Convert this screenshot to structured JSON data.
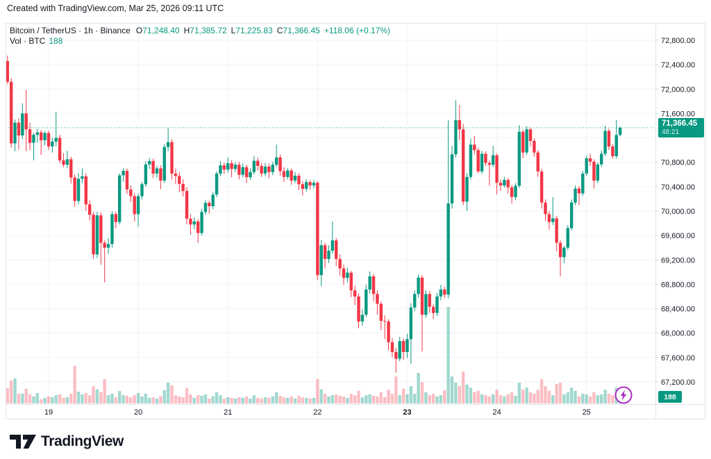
{
  "attribution": "Created with TradingView.com, Mar 25, 2026 09:11 UTC",
  "header": {
    "title": "Bitcoin / TetherUS · 1h · Binance",
    "ohlc_items": [
      {
        "label": "O",
        "value": "71,248.40"
      },
      {
        "label": "H",
        "value": "71,385.72"
      },
      {
        "label": "L",
        "value": "71,225.83"
      },
      {
        "label": "C",
        "value": "71,366.45"
      }
    ],
    "change": "+118.06 (+0.17%)",
    "vol_label": "Vol · BTC",
    "vol_value": "188"
  },
  "price_axis": {
    "labels": [
      {
        "text": "72,800.00",
        "price": 72800
      },
      {
        "text": "72,400.00",
        "price": 72400
      },
      {
        "text": "72,000.00",
        "price": 72000
      },
      {
        "text": "71,600.00",
        "price": 71600
      },
      {
        "text": "70,800.00",
        "price": 70800
      },
      {
        "text": "70,400.00",
        "price": 70400
      },
      {
        "text": "70,000.00",
        "price": 70000
      },
      {
        "text": "69,600.00",
        "price": 69600
      },
      {
        "text": "69,200.00",
        "price": 69200
      },
      {
        "text": "68,800.00",
        "price": 68800
      },
      {
        "text": "68,400.00",
        "price": 68400
      },
      {
        "text": "68,000.00",
        "price": 68000
      },
      {
        "text": "67,600.00",
        "price": 67600
      },
      {
        "text": "67,200.00",
        "price": 67200
      }
    ],
    "badge": {
      "price": "71,366.45",
      "countdown": "48:21"
    },
    "volume_badge": "188"
  },
  "time_axis": {
    "labels": [
      {
        "label": "19",
        "index": 11,
        "bold": false
      },
      {
        "label": "20",
        "index": 35,
        "bold": false
      },
      {
        "label": "21",
        "index": 59,
        "bold": false
      },
      {
        "label": "22",
        "index": 83,
        "bold": false
      },
      {
        "label": "23",
        "index": 107,
        "bold": true
      },
      {
        "label": "24",
        "index": 131,
        "bold": false
      },
      {
        "label": "25",
        "index": 155,
        "bold": false
      }
    ]
  },
  "footer": {
    "logo_text": "TradingView"
  },
  "colors": {
    "up": "#089981",
    "down": "#f23645",
    "vol_up": "rgba(8,153,129,0.38)",
    "vol_down": "rgba(242,54,69,0.32)",
    "grid": "#f0f3fa",
    "axis_text": "#131722",
    "separator": "#e0e3eb",
    "badge_bg": "#089981",
    "flash_purple": "#ab2cc4"
  },
  "chart_data": {
    "type": "candlestick",
    "title": "Bitcoin / TetherUS",
    "interval": "1h",
    "exchange": "Binance",
    "last_price": 71366.45,
    "last_change": 118.06,
    "last_change_pct": 0.17,
    "y_axis": {
      "min": 67200,
      "max": 72800,
      "step": 400
    },
    "x_day_labels": [
      "19",
      "20",
      "21",
      "22",
      "23",
      "24",
      "25"
    ],
    "candle_format": [
      "open",
      "high",
      "low",
      "close",
      "volume_btc"
    ],
    "candles": [
      [
        72460,
        72550,
        72080,
        72120,
        520
      ],
      [
        72120,
        72180,
        71040,
        71110,
        780
      ],
      [
        71110,
        71500,
        70980,
        71450,
        850
      ],
      [
        71450,
        71520,
        71010,
        71240,
        330
      ],
      [
        71240,
        71770,
        71180,
        71600,
        330
      ],
      [
        71600,
        71985,
        70980,
        71340,
        500
      ],
      [
        71340,
        71450,
        71000,
        71120,
        310
      ],
      [
        71120,
        71280,
        70830,
        71250,
        240
      ],
      [
        71250,
        71350,
        71120,
        71290,
        355
      ],
      [
        71290,
        71330,
        70920,
        71160,
        140
      ],
      [
        71160,
        71310,
        71080,
        71280,
        190
      ],
      [
        71280,
        71320,
        71000,
        71060,
        240
      ],
      [
        71060,
        71200,
        70960,
        71140,
        210
      ],
      [
        71140,
        71630,
        71060,
        71200,
        280
      ],
      [
        71200,
        71250,
        70780,
        70830,
        310
      ],
      [
        70830,
        70950,
        70720,
        70760,
        190
      ],
      [
        70760,
        70990,
        70700,
        70850,
        210
      ],
      [
        70850,
        70890,
        70450,
        70550,
        330
      ],
      [
        70550,
        70600,
        70070,
        70165,
        1280
      ],
      [
        70165,
        70620,
        70110,
        70530,
        400
      ],
      [
        70530,
        70700,
        70460,
        70570,
        310
      ],
      [
        70570,
        70620,
        70000,
        70110,
        355
      ],
      [
        70110,
        70180,
        69845,
        69940,
        280
      ],
      [
        69940,
        69990,
        69220,
        69290,
        590
      ],
      [
        69290,
        69990,
        69230,
        69930,
        475
      ],
      [
        69930,
        69980,
        69120,
        69480,
        380
      ],
      [
        69480,
        69520,
        68830,
        69400,
        830
      ],
      [
        69400,
        69560,
        69300,
        69460,
        280
      ],
      [
        69460,
        70000,
        69400,
        69950,
        330
      ],
      [
        69950,
        69990,
        69720,
        69820,
        210
      ],
      [
        69820,
        70620,
        69780,
        70585,
        425
      ],
      [
        70585,
        70700,
        70480,
        70660,
        280
      ],
      [
        70660,
        70700,
        70280,
        70355,
        260
      ],
      [
        70355,
        70420,
        70150,
        70245,
        210
      ],
      [
        70245,
        70290,
        69830,
        69950,
        280
      ],
      [
        69950,
        70290,
        69745,
        70245,
        355
      ],
      [
        70245,
        70480,
        70190,
        70440,
        240
      ],
      [
        70440,
        70820,
        70400,
        70765,
        330
      ],
      [
        70765,
        70870,
        70690,
        70820,
        190
      ],
      [
        70820,
        70860,
        70540,
        70615,
        210
      ],
      [
        70615,
        70740,
        70550,
        70700,
        165
      ],
      [
        70700,
        70750,
        70360,
        70500,
        240
      ],
      [
        70500,
        71100,
        70460,
        71050,
        450
      ],
      [
        71050,
        71360,
        70980,
        71130,
        710
      ],
      [
        71130,
        71180,
        70520,
        70615,
        615
      ],
      [
        70615,
        70700,
        70440,
        70575,
        280
      ],
      [
        70575,
        70640,
        70310,
        70445,
        240
      ],
      [
        70445,
        70520,
        70240,
        70330,
        210
      ],
      [
        70330,
        70390,
        69780,
        69875,
        520
      ],
      [
        69875,
        69950,
        69610,
        69780,
        310
      ],
      [
        69780,
        69900,
        69700,
        69830,
        190
      ],
      [
        69830,
        69870,
        69480,
        69640,
        280
      ],
      [
        69640,
        70040,
        69600,
        69985,
        260
      ],
      [
        69985,
        70180,
        69940,
        70135,
        310
      ],
      [
        70135,
        70170,
        69960,
        70080,
        165
      ],
      [
        70080,
        70310,
        70030,
        70270,
        240
      ],
      [
        70270,
        70650,
        70230,
        70615,
        380
      ],
      [
        70615,
        70820,
        70570,
        70750,
        280
      ],
      [
        70750,
        70800,
        70610,
        70680,
        165
      ],
      [
        70680,
        70880,
        70630,
        70785,
        210
      ],
      [
        70785,
        70830,
        70555,
        70690,
        190
      ],
      [
        70690,
        70800,
        70640,
        70760,
        165
      ],
      [
        70760,
        70810,
        70520,
        70595,
        210
      ],
      [
        70595,
        70780,
        70550,
        70720,
        190
      ],
      [
        70720,
        70760,
        70460,
        70555,
        240
      ],
      [
        70555,
        70700,
        70510,
        70640,
        165
      ],
      [
        70640,
        70900,
        70600,
        70825,
        280
      ],
      [
        70825,
        70880,
        70660,
        70740,
        190
      ],
      [
        70740,
        70790,
        70560,
        70615,
        165
      ],
      [
        70615,
        70790,
        70570,
        70730,
        210
      ],
      [
        70730,
        70780,
        70540,
        70640,
        190
      ],
      [
        70640,
        70810,
        70590,
        70760,
        240
      ],
      [
        70760,
        71090,
        70720,
        70880,
        380
      ],
      [
        70880,
        70930,
        70580,
        70655,
        260
      ],
      [
        70655,
        70720,
        70475,
        70560,
        210
      ],
      [
        70560,
        70710,
        70520,
        70665,
        190
      ],
      [
        70665,
        70700,
        70430,
        70500,
        240
      ],
      [
        70500,
        70640,
        70460,
        70580,
        165
      ],
      [
        70580,
        70620,
        70345,
        70440,
        260
      ],
      [
        70440,
        70490,
        70255,
        70365,
        210
      ],
      [
        70365,
        70520,
        70320,
        70475,
        190
      ],
      [
        70475,
        70510,
        70350,
        70420,
        165
      ],
      [
        70420,
        70510,
        70370,
        70465,
        190
      ],
      [
        70465,
        70490,
        68870,
        68950,
        830
      ],
      [
        68950,
        69520,
        68770,
        69440,
        480
      ],
      [
        69440,
        69480,
        69060,
        69215,
        330
      ],
      [
        69215,
        69440,
        69150,
        69350,
        240
      ],
      [
        69350,
        69830,
        69300,
        69520,
        280
      ],
      [
        69520,
        69560,
        69100,
        69215,
        310
      ],
      [
        69215,
        69290,
        68940,
        69060,
        260
      ],
      [
        69060,
        69120,
        68790,
        68905,
        240
      ],
      [
        68905,
        69070,
        68830,
        68990,
        190
      ],
      [
        68990,
        69020,
        68590,
        68700,
        330
      ],
      [
        68700,
        68780,
        68460,
        68600,
        280
      ],
      [
        68600,
        68650,
        68080,
        68190,
        425
      ],
      [
        68190,
        68390,
        68120,
        68300,
        210
      ],
      [
        68300,
        68790,
        68260,
        68715,
        280
      ],
      [
        68715,
        69010,
        68650,
        68930,
        310
      ],
      [
        68930,
        68970,
        68520,
        68640,
        260
      ],
      [
        68640,
        68700,
        68300,
        68480,
        240
      ],
      [
        68480,
        68520,
        68050,
        68200,
        380
      ],
      [
        68200,
        68290,
        67900,
        68190,
        210
      ],
      [
        68190,
        68230,
        67720,
        67850,
        470
      ],
      [
        67850,
        67920,
        67600,
        67690,
        330
      ],
      [
        67690,
        67760,
        67350,
        67580,
        920
      ],
      [
        67580,
        67940,
        67540,
        67870,
        280
      ],
      [
        67870,
        67910,
        67560,
        67690,
        500
      ],
      [
        67690,
        67990,
        67590,
        67900,
        310
      ],
      [
        67900,
        68490,
        67500,
        68420,
        590
      ],
      [
        68420,
        68700,
        68360,
        68640,
        330
      ],
      [
        68640,
        68960,
        68580,
        68910,
        1040
      ],
      [
        68910,
        68950,
        67700,
        68300,
        730
      ],
      [
        68300,
        68700,
        68250,
        68640,
        380
      ],
      [
        68640,
        68690,
        68330,
        68430,
        280
      ],
      [
        68430,
        68470,
        68230,
        68330,
        330
      ],
      [
        68330,
        68660,
        68280,
        68600,
        240
      ],
      [
        68600,
        68790,
        68540,
        68715,
        280
      ],
      [
        68715,
        68760,
        68570,
        68630,
        450
      ],
      [
        68630,
        71490,
        68570,
        70125,
        3290
      ],
      [
        70125,
        71070,
        70040,
        70930,
        920
      ],
      [
        70930,
        71815,
        70880,
        71490,
        710
      ],
      [
        71490,
        71740,
        71160,
        71340,
        590
      ],
      [
        71340,
        71430,
        70100,
        70155,
        1090
      ],
      [
        70155,
        70620,
        70000,
        70560,
        640
      ],
      [
        70560,
        71190,
        70520,
        71090,
        540
      ],
      [
        71090,
        71230,
        70930,
        71000,
        380
      ],
      [
        71000,
        71040,
        70620,
        70650,
        430
      ],
      [
        70650,
        70990,
        70610,
        70940,
        310
      ],
      [
        70940,
        70980,
        70740,
        70790,
        280
      ],
      [
        70790,
        70830,
        70420,
        70760,
        240
      ],
      [
        70760,
        71070,
        70720,
        70915,
        310
      ],
      [
        70915,
        70950,
        70275,
        70465,
        470
      ],
      [
        70465,
        70520,
        70330,
        70420,
        280
      ],
      [
        70420,
        70560,
        70380,
        70510,
        240
      ],
      [
        70510,
        70540,
        70290,
        70390,
        310
      ],
      [
        70390,
        70430,
        70125,
        70230,
        380
      ],
      [
        70230,
        70460,
        70180,
        70415,
        260
      ],
      [
        70415,
        71410,
        70380,
        71300,
        710
      ],
      [
        71300,
        71330,
        70870,
        70960,
        470
      ],
      [
        70960,
        71390,
        70920,
        71340,
        540
      ],
      [
        71340,
        71370,
        71060,
        71150,
        380
      ],
      [
        71150,
        71190,
        70890,
        70960,
        330
      ],
      [
        70960,
        71000,
        70560,
        70650,
        470
      ],
      [
        70650,
        70690,
        70040,
        70140,
        830
      ],
      [
        70140,
        70190,
        69840,
        69950,
        590
      ],
      [
        69950,
        70000,
        69700,
        69820,
        430
      ],
      [
        69820,
        70230,
        69770,
        69880,
        280
      ],
      [
        69880,
        69920,
        69340,
        69480,
        660
      ],
      [
        69480,
        69520,
        68930,
        69245,
        710
      ],
      [
        69245,
        69430,
        69150,
        69400,
        310
      ],
      [
        69400,
        69770,
        69360,
        69720,
        380
      ],
      [
        69720,
        70190,
        69680,
        70140,
        540
      ],
      [
        70140,
        70420,
        70100,
        70370,
        430
      ],
      [
        70370,
        70410,
        70100,
        70290,
        240
      ],
      [
        70290,
        70660,
        70250,
        70615,
        330
      ],
      [
        70615,
        70910,
        70570,
        70865,
        310
      ],
      [
        70865,
        70940,
        70740,
        70810,
        240
      ],
      [
        70810,
        70850,
        70370,
        70500,
        380
      ],
      [
        70500,
        70800,
        70460,
        70765,
        280
      ],
      [
        70765,
        70990,
        70720,
        70940,
        310
      ],
      [
        70940,
        71400,
        70900,
        71315,
        470
      ],
      [
        71315,
        71350,
        71000,
        71060,
        330
      ],
      [
        71060,
        71100,
        70860,
        70900,
        280
      ],
      [
        70900,
        71490,
        70860,
        71248.4,
        540
      ],
      [
        71248.4,
        71385.72,
        71225.83,
        71366.45,
        188
      ]
    ]
  }
}
